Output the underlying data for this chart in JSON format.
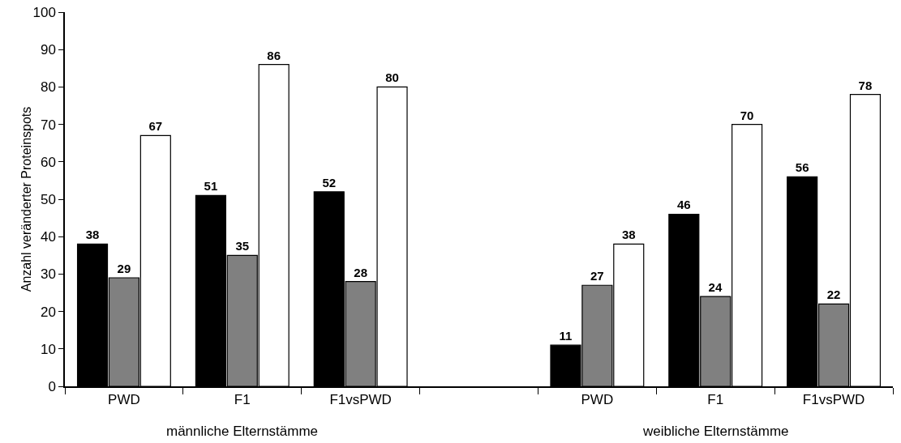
{
  "chart_data": {
    "type": "bar",
    "ylabel": "Anzahl veränderter Proteinspots",
    "categories": [
      "PWD",
      "F1",
      "F1vsPWD",
      null,
      "PWD",
      "F1",
      "F1vsPWD"
    ],
    "series": [
      {
        "color": "#000000",
        "values": [
          38,
          51,
          52,
          null,
          11,
          46,
          56
        ]
      },
      {
        "color": "#808080",
        "values": [
          29,
          35,
          28,
          null,
          27,
          24,
          22
        ]
      },
      {
        "color": "#ffffff",
        "values": [
          67,
          86,
          80,
          null,
          38,
          70,
          78
        ]
      }
    ],
    "ylim": [
      0,
      100
    ],
    "yticks": [
      0,
      10,
      20,
      30,
      40,
      50,
      60,
      70,
      80,
      90,
      100
    ],
    "data_labels": true,
    "grid": false,
    "annotations": [
      "männliche Elternstämme",
      "weibliche Elternstämme"
    ]
  }
}
